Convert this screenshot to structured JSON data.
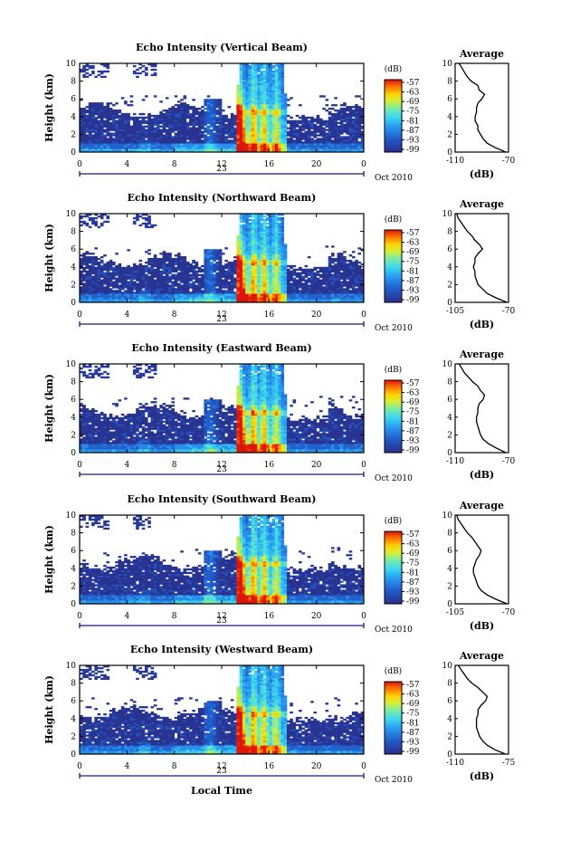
{
  "figure": {
    "xlabel": "Local Time",
    "month_label": "Oct 2010",
    "day_label": "23"
  },
  "chart_data": [
    {
      "type": "heatmap",
      "title": "Echo Intensity (Vertical Beam)",
      "ylabel": "Height (km)",
      "xlabel": "Local Time",
      "x_ticks": [
        "0",
        "4",
        "8",
        "12",
        "16",
        "20",
        "0"
      ],
      "y_ticks": [
        "0",
        "2",
        "4",
        "6",
        "8",
        "10"
      ],
      "xlim": [
        0,
        24
      ],
      "ylim": [
        0,
        10
      ],
      "colorbar": {
        "label": "(dB)",
        "ticks": [
          "-57",
          "-63",
          "-69",
          "-75",
          "-81",
          "-87",
          "-93",
          "-99"
        ]
      },
      "profile": {
        "title": "Average",
        "xlabel": "(dB)",
        "x_ticks": [
          "-110",
          "-70"
        ],
        "xlim": [
          -110,
          -70
        ],
        "y_ticks": [
          "0",
          "2",
          "4",
          "6",
          "8",
          "10"
        ],
        "height": [
          0,
          0.5,
          1,
          1.5,
          2,
          2.5,
          3,
          3.5,
          4,
          4.5,
          5,
          5.5,
          6,
          6.5,
          7,
          7.5,
          8,
          8.5,
          9,
          9.5,
          10
        ],
        "db": [
          -72,
          -80,
          -86,
          -89,
          -91,
          -93,
          -93,
          -95,
          -95,
          -94,
          -94,
          -93,
          -90,
          -88,
          -92,
          -93,
          -98,
          -101,
          -103,
          -105,
          -107
        ]
      }
    },
    {
      "type": "heatmap",
      "title": "Echo Intensity (Northward Beam)",
      "ylabel": "Height (km)",
      "xlabel": "Local Time",
      "x_ticks": [
        "0",
        "4",
        "8",
        "12",
        "16",
        "20",
        "0"
      ],
      "y_ticks": [
        "0",
        "2",
        "4",
        "6",
        "8",
        "10"
      ],
      "xlim": [
        0,
        24
      ],
      "ylim": [
        0,
        10
      ],
      "colorbar": {
        "label": "(dB)",
        "ticks": [
          "-57",
          "-63",
          "-69",
          "-75",
          "-81",
          "-87",
          "-93",
          "-99"
        ]
      },
      "profile": {
        "title": "Average",
        "xlabel": "(dB)",
        "x_ticks": [
          "-105",
          "-70"
        ],
        "xlim": [
          -105,
          -70
        ],
        "y_ticks": [
          "0",
          "2",
          "4",
          "6",
          "8",
          "10"
        ],
        "height": [
          0,
          0.5,
          1,
          1.5,
          2,
          2.5,
          3,
          3.5,
          4,
          4.5,
          5,
          5.5,
          6,
          6.5,
          7,
          7.5,
          8,
          8.5,
          9,
          9.5,
          10
        ],
        "db": [
          -71,
          -78,
          -84,
          -87,
          -90,
          -91,
          -92,
          -92,
          -93,
          -92,
          -92,
          -90,
          -87,
          -89,
          -92,
          -94,
          -97,
          -99,
          -101,
          -103,
          -104
        ]
      }
    },
    {
      "type": "heatmap",
      "title": "Echo Intensity (Eastward Beam)",
      "ylabel": "Height (km)",
      "xlabel": "Local Time",
      "x_ticks": [
        "0",
        "4",
        "8",
        "12",
        "16",
        "20",
        "0"
      ],
      "y_ticks": [
        "0",
        "2",
        "4",
        "6",
        "8",
        "10"
      ],
      "xlim": [
        0,
        24
      ],
      "ylim": [
        0,
        10
      ],
      "colorbar": {
        "label": "(dB)",
        "ticks": [
          "-57",
          "-63",
          "-69",
          "-75",
          "-81",
          "-87",
          "-93",
          "-99"
        ]
      },
      "profile": {
        "title": "Average",
        "xlabel": "(dB)",
        "x_ticks": [
          "-110",
          "-70"
        ],
        "xlim": [
          -110,
          -70
        ],
        "y_ticks": [
          "0",
          "2",
          "4",
          "6",
          "8",
          "10"
        ],
        "height": [
          0,
          0.5,
          1,
          1.5,
          2,
          2.5,
          3,
          3.5,
          4,
          4.5,
          5,
          5.5,
          6,
          6.5,
          7,
          7.5,
          8,
          8.5,
          9,
          9.5,
          10
        ],
        "db": [
          -72,
          -79,
          -85,
          -89,
          -91,
          -92,
          -93,
          -94,
          -94,
          -93,
          -93,
          -92,
          -89,
          -88,
          -91,
          -93,
          -97,
          -100,
          -103,
          -105,
          -107
        ]
      }
    },
    {
      "type": "heatmap",
      "title": "Echo Intensity (Southward Beam)",
      "ylabel": "Height (km)",
      "xlabel": "Local Time",
      "x_ticks": [
        "0",
        "4",
        "8",
        "12",
        "16",
        "20",
        "0"
      ],
      "y_ticks": [
        "0",
        "2",
        "4",
        "6",
        "8",
        "10"
      ],
      "xlim": [
        0,
        24
      ],
      "ylim": [
        0,
        10
      ],
      "colorbar": {
        "label": "(dB)",
        "ticks": [
          "-57",
          "-63",
          "-69",
          "-75",
          "-81",
          "-87",
          "-93",
          "-99"
        ]
      },
      "profile": {
        "title": "Average",
        "xlabel": "(dB)",
        "x_ticks": [
          "-105",
          "-70"
        ],
        "xlim": [
          -105,
          -70
        ],
        "y_ticks": [
          "0",
          "2",
          "4",
          "6",
          "8",
          "10"
        ],
        "height": [
          0,
          0.5,
          1,
          1.5,
          2,
          2.5,
          3,
          3.5,
          4,
          4.5,
          5,
          5.5,
          6,
          6.5,
          7,
          7.5,
          8,
          8.5,
          9,
          9.5,
          10
        ],
        "db": [
          -71,
          -78,
          -84,
          -88,
          -90,
          -91,
          -92,
          -93,
          -93,
          -92,
          -91,
          -89,
          -88,
          -90,
          -92,
          -94,
          -97,
          -99,
          -101,
          -103,
          -104
        ]
      }
    },
    {
      "type": "heatmap",
      "title": "Echo Intensity (Westward Beam)",
      "ylabel": "Height (km)",
      "xlabel": "Local Time",
      "x_ticks": [
        "0",
        "4",
        "8",
        "12",
        "16",
        "20",
        "0"
      ],
      "y_ticks": [
        "0",
        "2",
        "4",
        "6",
        "8",
        "10"
      ],
      "xlim": [
        0,
        24
      ],
      "ylim": [
        0,
        10
      ],
      "colorbar": {
        "label": "(dB)",
        "ticks": [
          "-57",
          "-63",
          "-69",
          "-75",
          "-81",
          "-87",
          "-93",
          "-99"
        ]
      },
      "profile": {
        "title": "Average",
        "xlabel": "(dB)",
        "x_ticks": [
          "-110",
          "-75"
        ],
        "xlim": [
          -110,
          -75
        ],
        "y_ticks": [
          "0",
          "2",
          "4",
          "6",
          "8",
          "10"
        ],
        "height": [
          0,
          0.5,
          1,
          1.5,
          2,
          2.5,
          3,
          3.5,
          4,
          4.5,
          5,
          5.5,
          6,
          6.5,
          7,
          7.5,
          8,
          8.5,
          9,
          9.5,
          10
        ],
        "db": [
          -77,
          -84,
          -89,
          -92,
          -94,
          -95,
          -96,
          -96,
          -96,
          -95,
          -95,
          -93,
          -90,
          -89,
          -92,
          -95,
          -99,
          -102,
          -104,
          -106,
          -108
        ]
      }
    }
  ]
}
